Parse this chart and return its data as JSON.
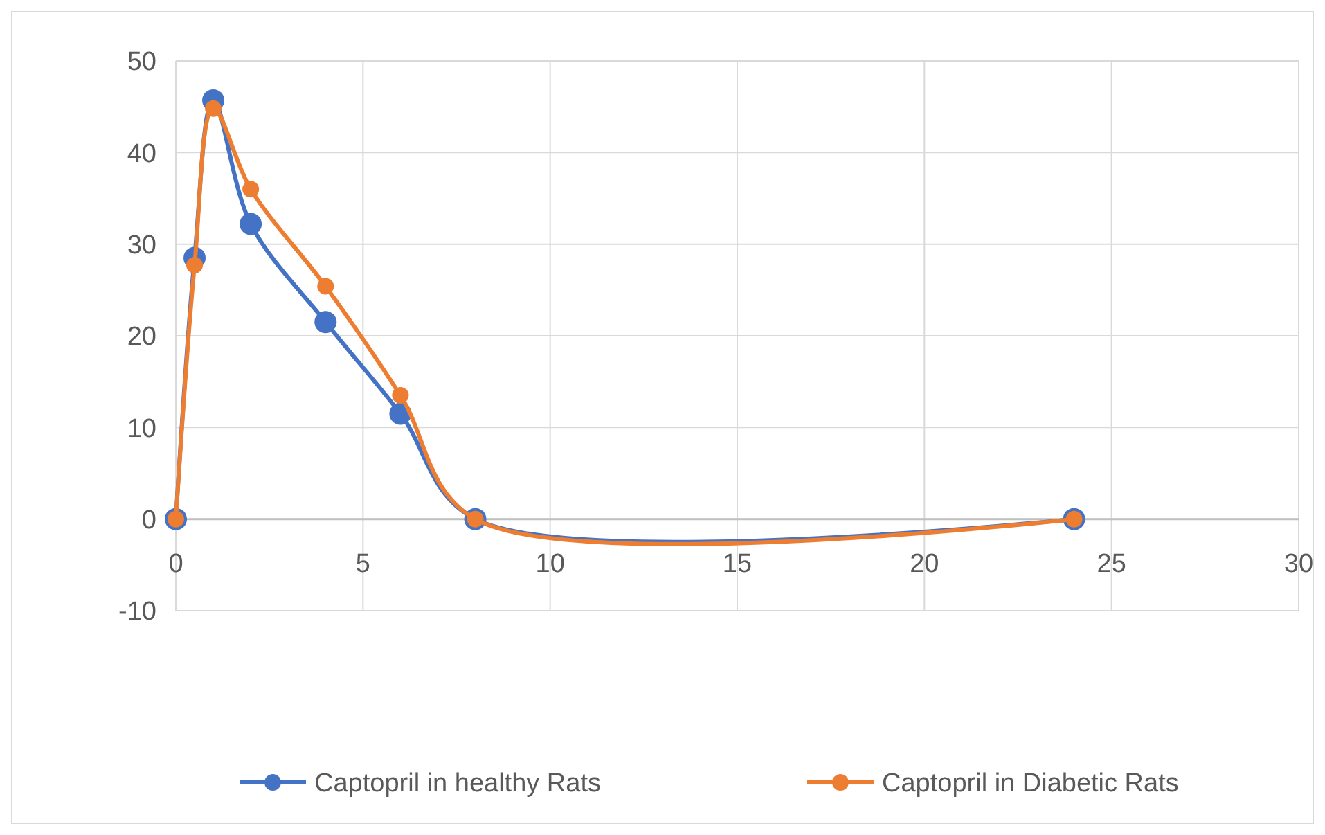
{
  "chart_data": {
    "type": "line",
    "x": [
      0,
      0.5,
      1,
      2,
      4,
      6,
      8,
      24
    ],
    "series": [
      {
        "name": "Captopril in healthy Rats",
        "color": "#4472c4",
        "values": [
          0,
          28.5,
          45.7,
          32.2,
          21.5,
          11.5,
          0,
          0
        ]
      },
      {
        "name": "Captopril in Diabetic Rats",
        "color": "#ed7d31",
        "values": [
          0,
          27.7,
          44.8,
          36,
          25.4,
          13.5,
          0,
          0
        ]
      }
    ],
    "xlim": [
      0,
      30
    ],
    "xticks": [
      0,
      5,
      10,
      15,
      20,
      25,
      30
    ],
    "ylim": [
      -10,
      50
    ],
    "yticks": [
      -10,
      0,
      10,
      20,
      30,
      40,
      50
    ],
    "grid": true,
    "legend": "bottom",
    "marker": "circle",
    "line_style": "solid"
  }
}
